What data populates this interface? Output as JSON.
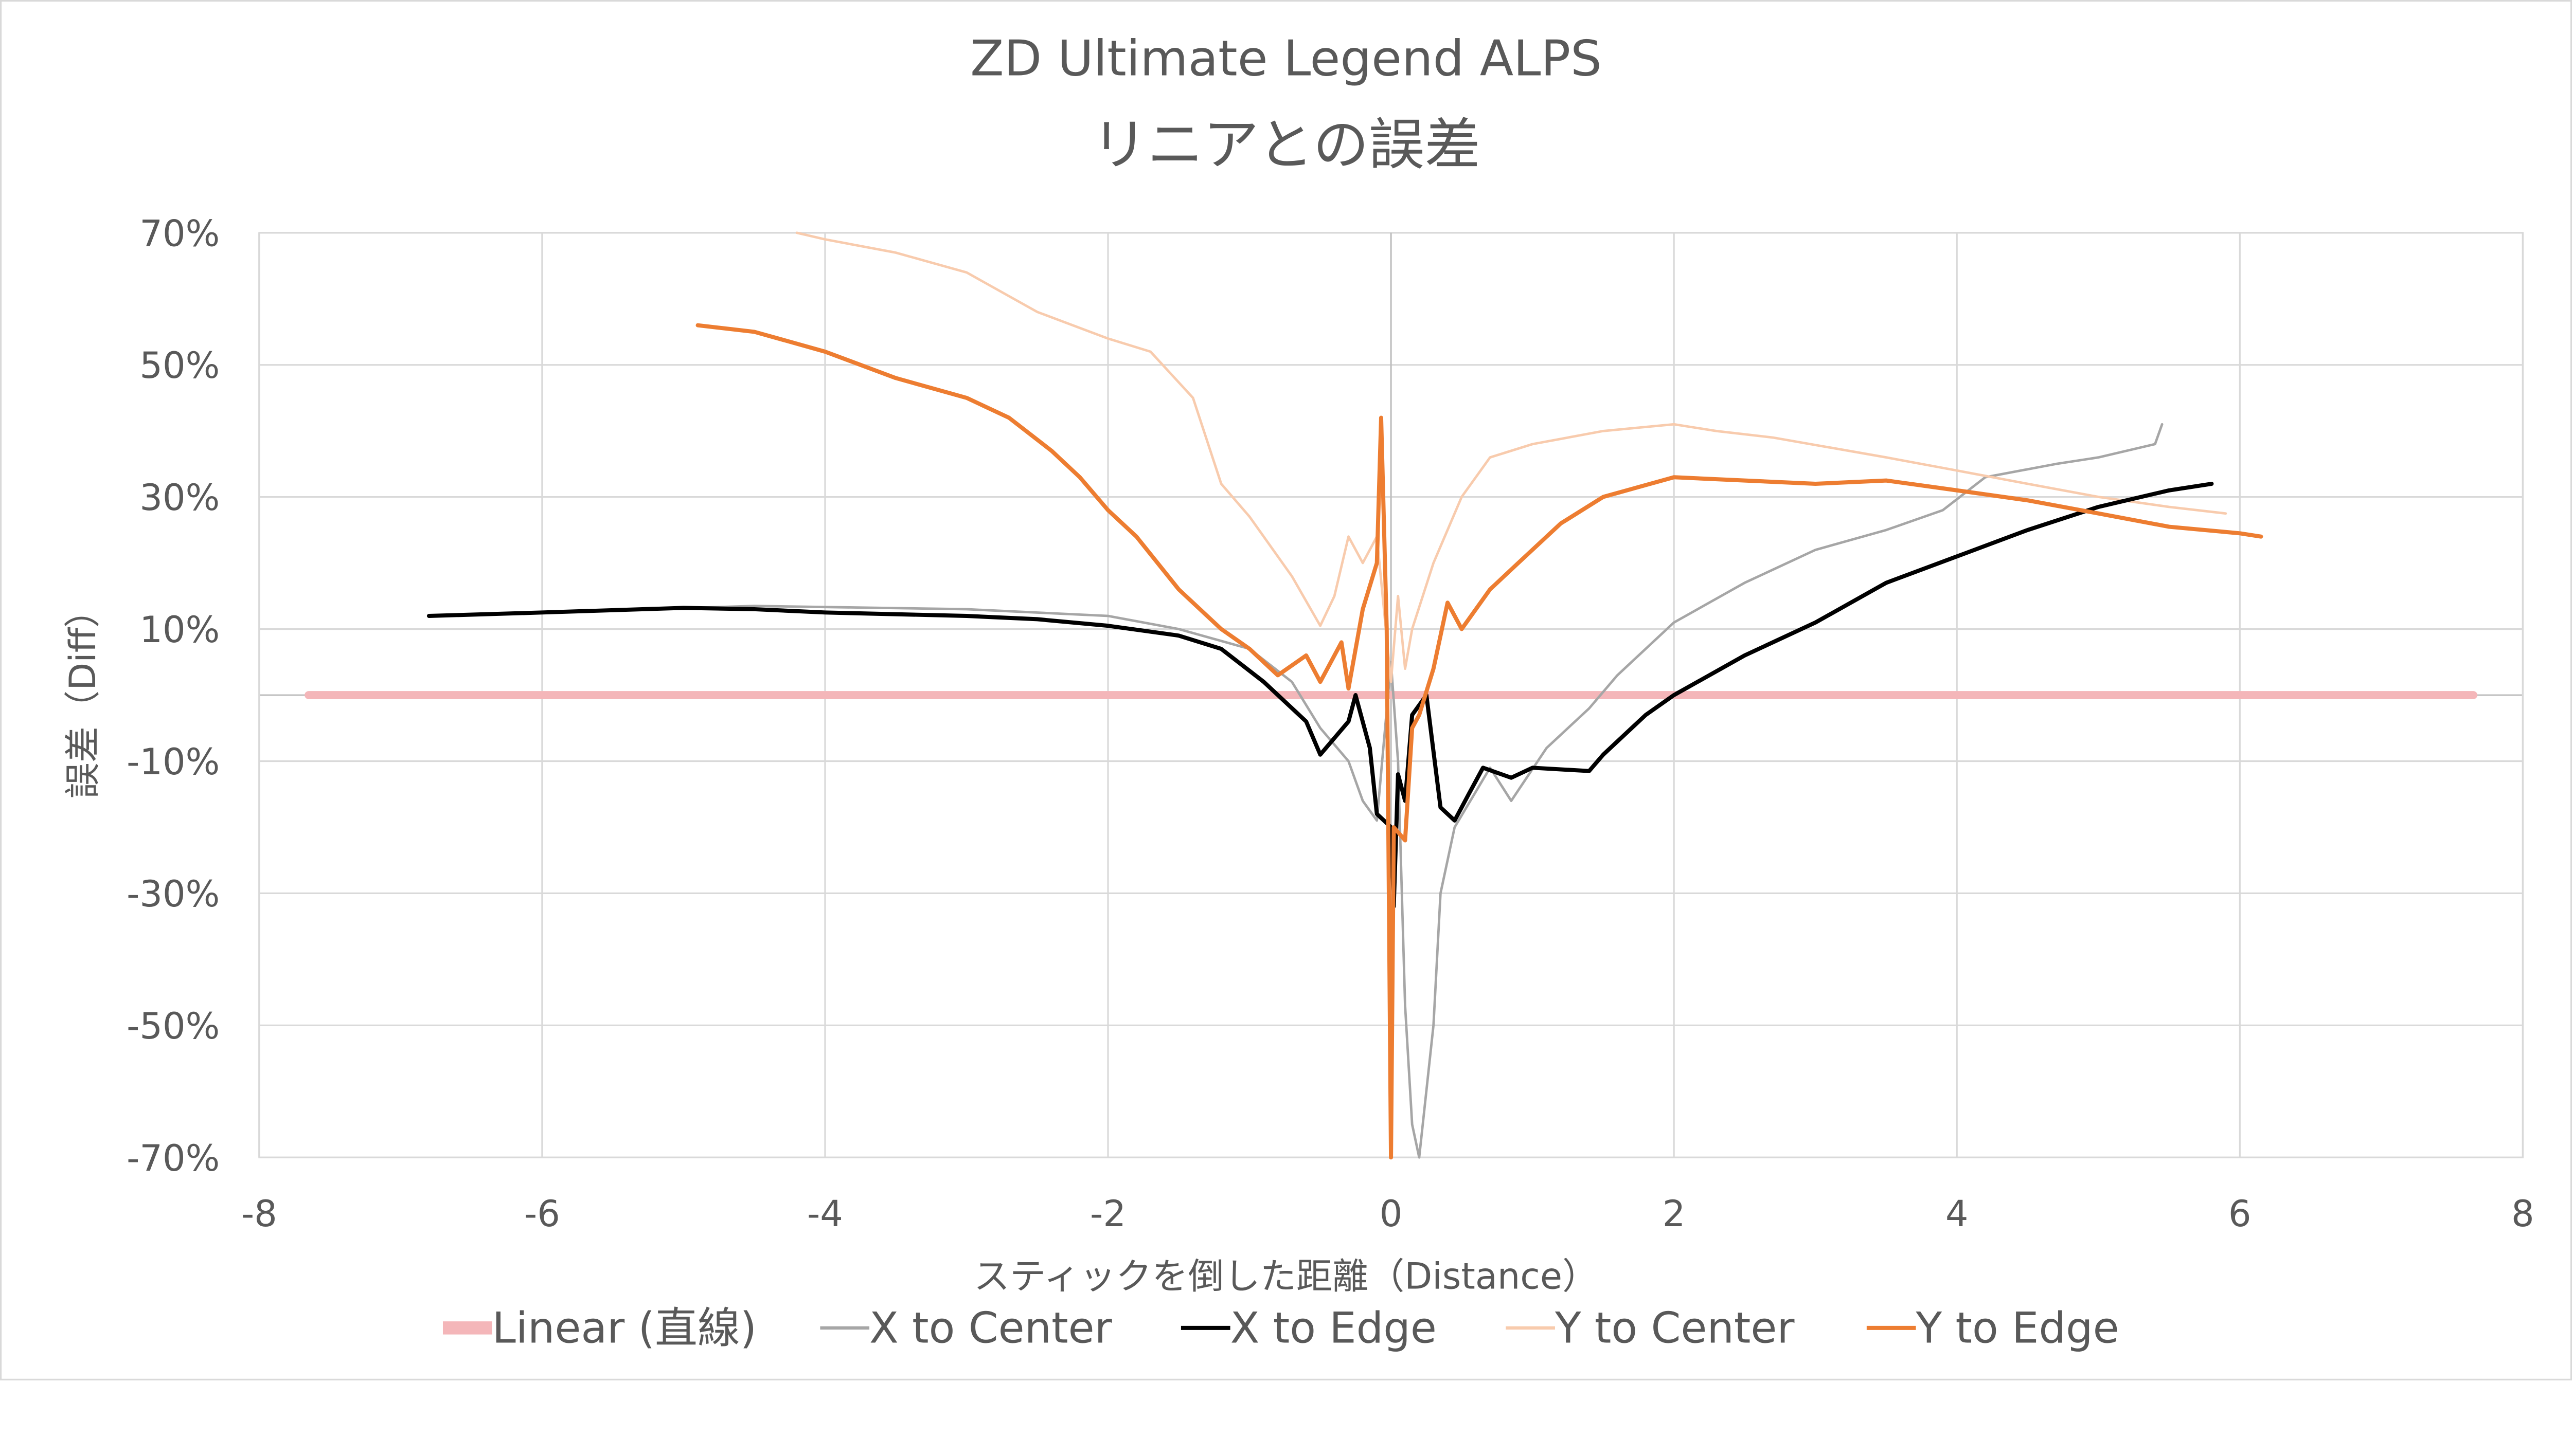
{
  "chart_data": {
    "type": "line",
    "title": "ZD Ultimate Legend ALPS",
    "subtitle": "リニアとの誤差",
    "xlabel": "スティックを倒した距離（Distance）",
    "ylabel": "誤差（Diff）",
    "xlim": [
      -8,
      8
    ],
    "ylim": [
      -70,
      70
    ],
    "x_ticks": [
      "-8",
      "-6",
      "-4",
      "-2",
      "0",
      "2",
      "4",
      "6",
      "8"
    ],
    "x_tick_values": [
      -8,
      -6,
      -4,
      -2,
      0,
      2,
      4,
      6,
      8
    ],
    "y_ticks": [
      "70%",
      "50%",
      "30%",
      "10%",
      "-10%",
      "-30%",
      "-50%",
      "-70%"
    ],
    "y_tick_values": [
      70,
      50,
      30,
      10,
      -10,
      -30,
      -50,
      -70
    ],
    "grid": true,
    "legend_position": "bottom",
    "series": [
      {
        "name": "Linear (直線)",
        "color": "#F4B6B9",
        "width": 5,
        "points": [
          [
            -7.65,
            0
          ],
          [
            7.65,
            0
          ]
        ]
      },
      {
        "name": "X to Center",
        "color": "#A6A6A6",
        "width": 1.5,
        "points": [
          [
            -6.8,
            12
          ],
          [
            -6,
            12.5
          ],
          [
            -4.5,
            13.5
          ],
          [
            -3,
            13
          ],
          [
            -2,
            12
          ],
          [
            -1.5,
            10
          ],
          [
            -1,
            7
          ],
          [
            -0.7,
            2
          ],
          [
            -0.5,
            -5
          ],
          [
            -0.3,
            -10
          ],
          [
            -0.2,
            -16
          ],
          [
            -0.1,
            -19
          ],
          [
            0,
            5
          ],
          [
            0.05,
            -10
          ],
          [
            0.1,
            -47
          ],
          [
            0.15,
            -65
          ],
          [
            0.2,
            -70
          ],
          [
            0.3,
            -50
          ],
          [
            0.35,
            -30
          ],
          [
            0.45,
            -20
          ],
          [
            0.7,
            -11
          ],
          [
            0.85,
            -16
          ],
          [
            1.1,
            -8
          ],
          [
            1.4,
            -2
          ],
          [
            1.6,
            3
          ],
          [
            2,
            11
          ],
          [
            2.5,
            17
          ],
          [
            3,
            22
          ],
          [
            3.5,
            25
          ],
          [
            3.9,
            28
          ],
          [
            4.2,
            33
          ],
          [
            4.7,
            35
          ],
          [
            5,
            36
          ],
          [
            5.4,
            38
          ],
          [
            5.45,
            41
          ]
        ]
      },
      {
        "name": "X to Edge",
        "color": "#000000",
        "width": 2.5,
        "points": [
          [
            -6.8,
            12
          ],
          [
            -6,
            12.5
          ],
          [
            -5,
            13.2
          ],
          [
            -4.5,
            13
          ],
          [
            -4,
            12.5
          ],
          [
            -3,
            12
          ],
          [
            -2.5,
            11.5
          ],
          [
            -2,
            10.5
          ],
          [
            -1.5,
            9
          ],
          [
            -1.2,
            7
          ],
          [
            -0.9,
            2
          ],
          [
            -0.6,
            -4
          ],
          [
            -0.5,
            -9
          ],
          [
            -0.3,
            -4
          ],
          [
            -0.25,
            0
          ],
          [
            -0.15,
            -8
          ],
          [
            -0.1,
            -18
          ],
          [
            -0.05,
            -19
          ],
          [
            0,
            -20
          ],
          [
            0.02,
            -32
          ],
          [
            0.05,
            -12
          ],
          [
            0.1,
            -16
          ],
          [
            0.15,
            -3
          ],
          [
            0.25,
            0
          ],
          [
            0.35,
            -17
          ],
          [
            0.45,
            -19
          ],
          [
            0.55,
            -15
          ],
          [
            0.65,
            -11
          ],
          [
            0.85,
            -12.5
          ],
          [
            1.0,
            -11
          ],
          [
            1.4,
            -11.5
          ],
          [
            1.5,
            -9
          ],
          [
            1.8,
            -3
          ],
          [
            2,
            0
          ],
          [
            2.5,
            6
          ],
          [
            3,
            11
          ],
          [
            3.5,
            17
          ],
          [
            4,
            21
          ],
          [
            4.5,
            25
          ],
          [
            5,
            28.5
          ],
          [
            5.5,
            31
          ],
          [
            5.8,
            32
          ]
        ]
      },
      {
        "name": "Y to Center",
        "color": "#F8CBAD",
        "width": 1.5,
        "points": [
          [
            -4.2,
            70
          ],
          [
            -4,
            69
          ],
          [
            -3.5,
            67
          ],
          [
            -3,
            64
          ],
          [
            -2.5,
            58
          ],
          [
            -2,
            54
          ],
          [
            -1.7,
            52
          ],
          [
            -1.4,
            45
          ],
          [
            -1.2,
            32
          ],
          [
            -1,
            27
          ],
          [
            -0.7,
            18
          ],
          [
            -0.5,
            10.5
          ],
          [
            -0.4,
            15
          ],
          [
            -0.3,
            24
          ],
          [
            -0.2,
            20
          ],
          [
            -0.1,
            24
          ],
          [
            0,
            2
          ],
          [
            0.05,
            15
          ],
          [
            0.1,
            4
          ],
          [
            0.15,
            10
          ],
          [
            0.3,
            20
          ],
          [
            0.5,
            30
          ],
          [
            0.7,
            36
          ],
          [
            1,
            38
          ],
          [
            1.5,
            40
          ],
          [
            2,
            41
          ],
          [
            2.3,
            40
          ],
          [
            2.7,
            39
          ],
          [
            3.5,
            36
          ],
          [
            4,
            34
          ],
          [
            4.5,
            32
          ],
          [
            5,
            30
          ],
          [
            5.5,
            28.5
          ],
          [
            5.9,
            27.5
          ]
        ]
      },
      {
        "name": "Y to Edge",
        "color": "#ED7D31",
        "width": 2.5,
        "points": [
          [
            -4.9,
            56
          ],
          [
            -4.5,
            55
          ],
          [
            -4,
            52
          ],
          [
            -3.5,
            48
          ],
          [
            -3,
            45
          ],
          [
            -2.7,
            42
          ],
          [
            -2.4,
            37
          ],
          [
            -2.2,
            33
          ],
          [
            -2,
            28
          ],
          [
            -1.8,
            24
          ],
          [
            -1.5,
            16
          ],
          [
            -1.2,
            10
          ],
          [
            -1,
            7
          ],
          [
            -0.8,
            3
          ],
          [
            -0.6,
            6
          ],
          [
            -0.5,
            2
          ],
          [
            -0.35,
            8
          ],
          [
            -0.3,
            1
          ],
          [
            -0.2,
            13
          ],
          [
            -0.1,
            20
          ],
          [
            -0.07,
            42
          ],
          [
            -0.03,
            10
          ],
          [
            0,
            -70
          ],
          [
            0.02,
            -20
          ],
          [
            0.1,
            -22
          ],
          [
            0.15,
            -5
          ],
          [
            0.2,
            -3
          ],
          [
            0.3,
            4
          ],
          [
            0.4,
            14
          ],
          [
            0.5,
            10
          ],
          [
            0.7,
            16
          ],
          [
            0.9,
            20
          ],
          [
            1.2,
            26
          ],
          [
            1.5,
            30
          ],
          [
            2,
            33
          ],
          [
            2.5,
            32.5
          ],
          [
            3,
            32
          ],
          [
            3.5,
            32.5
          ],
          [
            4,
            31
          ],
          [
            4.5,
            29.5
          ],
          [
            5,
            27.5
          ],
          [
            5.5,
            25.5
          ],
          [
            6,
            24.5
          ],
          [
            6.15,
            24
          ]
        ]
      }
    ]
  }
}
